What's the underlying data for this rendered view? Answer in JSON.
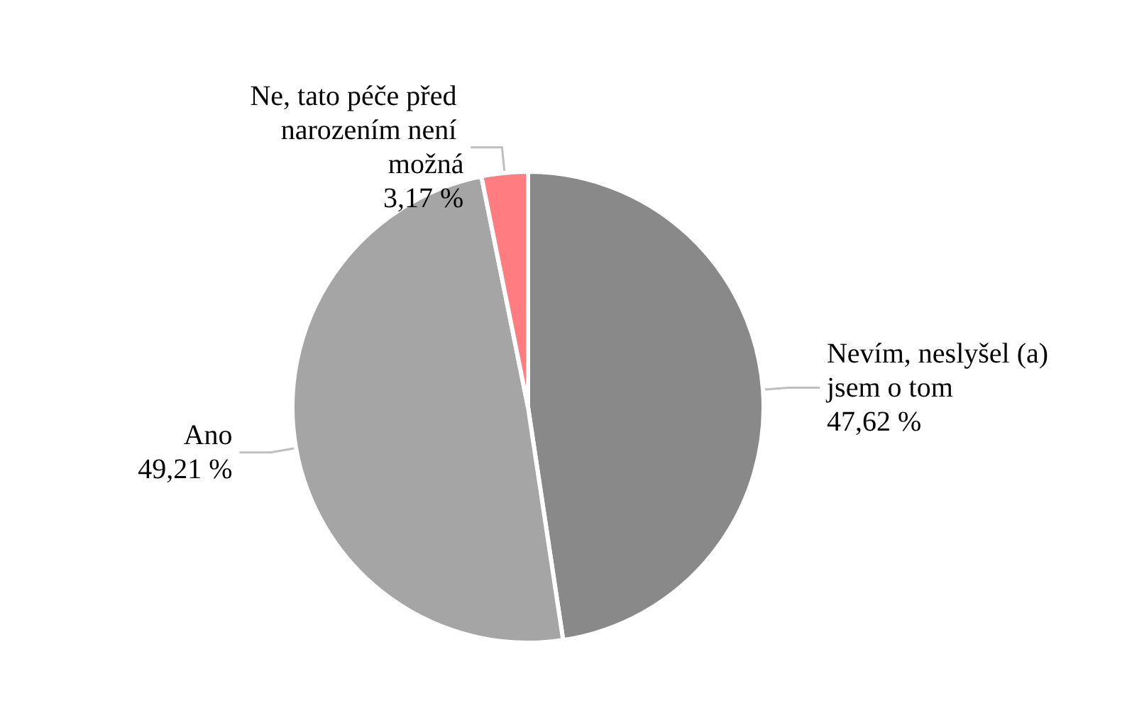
{
  "chart_data": {
    "type": "pie",
    "categories": [
      "Nevím, neslyšel (a) jsem o tom",
      "Ano",
      "Ne, tato péče před narozením není možná"
    ],
    "values": [
      47.62,
      49.21,
      3.17
    ],
    "colors": [
      "#898989",
      "#a5a5a5",
      "#ff7c80"
    ],
    "value_labels": [
      "47,62 %",
      "49,21 %",
      "3,17 %"
    ],
    "legend": false
  }
}
